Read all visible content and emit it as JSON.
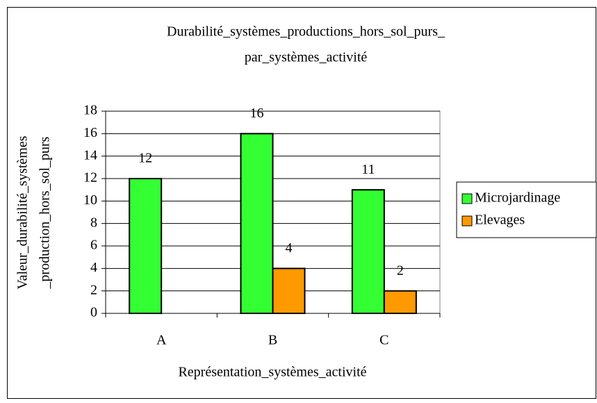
{
  "chart_data": {
    "type": "bar",
    "title": [
      "Durabilité_systèmes_productions_hors_sol_purs_",
      "par_systèmes_activité"
    ],
    "x_label": "Représentation_systèmes_activité",
    "y_label": [
      "Valeur_durabilité_systèmes",
      "_production_hors_sol_purs"
    ],
    "categories": [
      "A",
      "B",
      "C"
    ],
    "series": [
      {
        "name": "Microjardinage",
        "color": "#33ff33",
        "values": [
          12,
          16,
          11
        ]
      },
      {
        "name": "Elevages",
        "color": "#ff9900",
        "values": [
          null,
          4,
          2
        ]
      }
    ],
    "ylim": [
      0,
      18
    ],
    "yticks": [
      0,
      2,
      4,
      6,
      8,
      10,
      12,
      14,
      16,
      18
    ],
    "grid": true,
    "legend": "right"
  }
}
